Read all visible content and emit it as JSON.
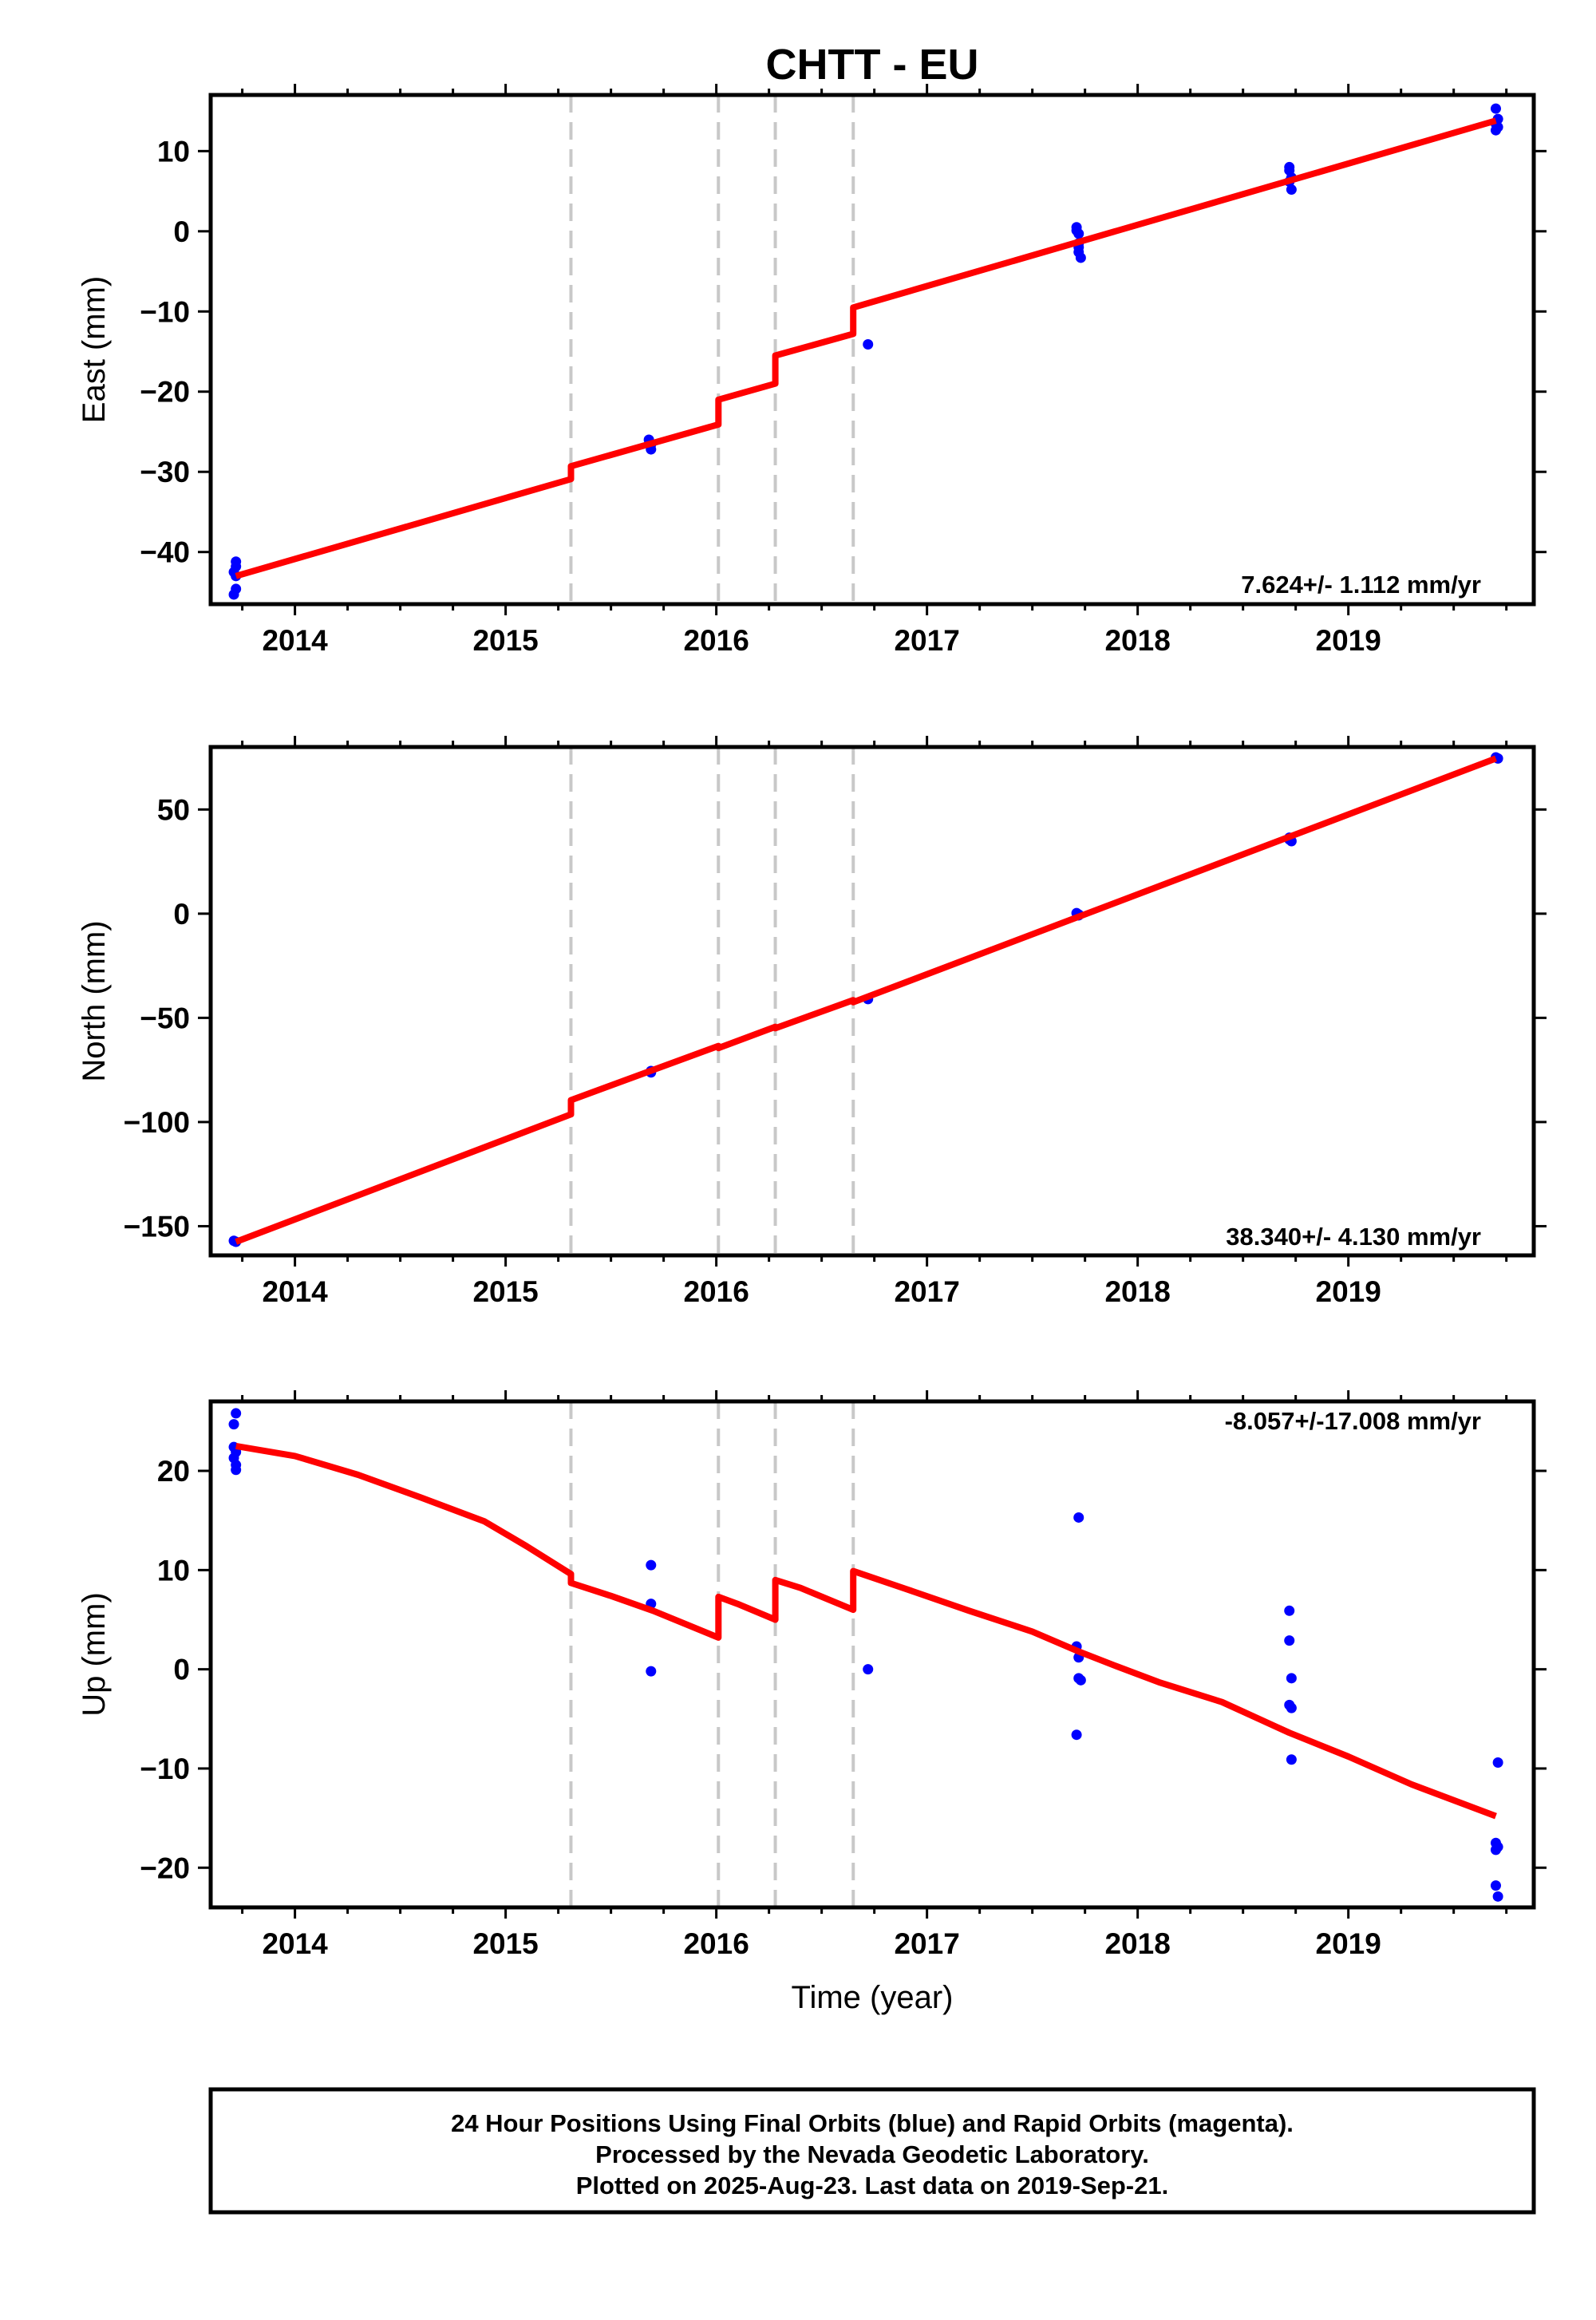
{
  "title": "CHTT - EU",
  "xlabel": "Time (year)",
  "footer": [
    "24 Hour Positions Using Final Orbits (blue) and Rapid Orbits (magenta).",
    "Processed by the Nevada Geodetic Laboratory.",
    "Plotted on 2025-Aug-23. Last data on 2019-Sep-21."
  ],
  "colors": {
    "data": "#0000ff",
    "model": "#ff0000",
    "break": "#c8c8c8",
    "axis": "#000000"
  },
  "chart_data": [
    {
      "type": "scatter",
      "component": "east",
      "ylabel": "East (mm)",
      "xlim": [
        2013.6,
        2019.88
      ],
      "ylim": [
        -46.5,
        17
      ],
      "x_ticks": [
        2014,
        2015,
        2016,
        2017,
        2018,
        2019
      ],
      "y_ticks": [
        -40,
        -30,
        -20,
        -10,
        0,
        10
      ],
      "y_tick_labels": [
        "−40",
        "−30",
        "−20",
        "−10",
        "0",
        "10"
      ],
      "rate_text": "7.624+/- 1.112 mm/yr",
      "breaks": [
        2015.31,
        2016.01,
        2016.28,
        2016.65
      ],
      "points": [
        [
          2013.72,
          -41.2
        ],
        [
          2013.72,
          -41.8
        ],
        [
          2013.71,
          -42.5
        ],
        [
          2013.72,
          -43.0
        ],
        [
          2013.71,
          -45.3
        ],
        [
          2013.72,
          -44.6
        ],
        [
          2015.68,
          -26.0
        ],
        [
          2015.69,
          -26.6
        ],
        [
          2015.69,
          -27.2
        ],
        [
          2016.72,
          -14.1
        ],
        [
          2017.71,
          0.5
        ],
        [
          2017.71,
          0.1
        ],
        [
          2017.72,
          -0.3
        ],
        [
          2017.72,
          -1.5
        ],
        [
          2017.72,
          -2.0
        ],
        [
          2017.72,
          -2.6
        ],
        [
          2017.73,
          -3.3
        ],
        [
          2018.72,
          8.0
        ],
        [
          2018.72,
          7.6
        ],
        [
          2018.73,
          6.7
        ],
        [
          2018.72,
          6.2
        ],
        [
          2018.73,
          5.2
        ],
        [
          2019.7,
          15.3
        ],
        [
          2019.71,
          14.0
        ],
        [
          2019.7,
          13.4
        ],
        [
          2019.71,
          13.0
        ],
        [
          2019.7,
          12.6
        ]
      ],
      "model": [
        [
          2013.72,
          -43.0
        ],
        [
          2015.31,
          -30.9
        ],
        [
          2015.31,
          -29.3
        ],
        [
          2016.01,
          -24.1
        ],
        [
          2016.01,
          -21.0
        ],
        [
          2016.28,
          -19.0
        ],
        [
          2016.28,
          -15.5
        ],
        [
          2016.65,
          -12.8
        ],
        [
          2016.65,
          -9.5
        ],
        [
          2019.7,
          13.8
        ]
      ]
    },
    {
      "type": "scatter",
      "component": "north",
      "ylabel": "North (mm)",
      "xlim": [
        2013.6,
        2019.88
      ],
      "ylim": [
        -164,
        80
      ],
      "x_ticks": [
        2014,
        2015,
        2016,
        2017,
        2018,
        2019
      ],
      "y_ticks": [
        -150,
        -100,
        -50,
        0,
        50
      ],
      "y_tick_labels": [
        "−150",
        "−100",
        "−50",
        "0",
        "50"
      ],
      "rate_text": "38.340+/- 4.130 mm/yr",
      "breaks": [
        2015.31,
        2016.01,
        2016.28,
        2016.65
      ],
      "points": [
        [
          2013.71,
          -157.0
        ],
        [
          2013.72,
          -157.5
        ],
        [
          2015.69,
          -75.5
        ],
        [
          2015.69,
          -76.2
        ],
        [
          2016.72,
          -41.0
        ],
        [
          2017.71,
          0.3
        ],
        [
          2017.72,
          -0.4
        ],
        [
          2017.72,
          -0.8
        ],
        [
          2018.72,
          36.5
        ],
        [
          2018.73,
          34.8
        ],
        [
          2018.72,
          35.6
        ],
        [
          2019.7,
          75.0
        ],
        [
          2019.71,
          74.5
        ]
      ],
      "model": [
        [
          2013.72,
          -157.5
        ],
        [
          2015.31,
          -96.3
        ],
        [
          2015.31,
          -89.5
        ],
        [
          2016.01,
          -63.5
        ],
        [
          2016.01,
          -64.5
        ],
        [
          2016.28,
          -54.3
        ],
        [
          2016.28,
          -55.0
        ],
        [
          2016.65,
          -41.5
        ],
        [
          2016.65,
          -42.5
        ],
        [
          2019.7,
          74.5
        ]
      ]
    },
    {
      "type": "scatter",
      "component": "up",
      "ylabel": "Up (mm)",
      "xlim": [
        2013.6,
        2019.88
      ],
      "ylim": [
        -24,
        27
      ],
      "x_ticks": [
        2014,
        2015,
        2016,
        2017,
        2018,
        2019
      ],
      "y_ticks": [
        -20,
        -10,
        0,
        10,
        20
      ],
      "y_tick_labels": [
        "−20",
        "−10",
        "0",
        "10",
        "20"
      ],
      "rate_text": "-8.057+/-17.008 mm/yr",
      "breaks": [
        2015.31,
        2016.01,
        2016.28,
        2016.65
      ],
      "points": [
        [
          2013.72,
          25.8
        ],
        [
          2013.71,
          24.7
        ],
        [
          2013.71,
          22.4
        ],
        [
          2013.72,
          21.9
        ],
        [
          2013.71,
          21.3
        ],
        [
          2013.72,
          20.6
        ],
        [
          2013.72,
          20.1
        ],
        [
          2015.69,
          10.5
        ],
        [
          2015.69,
          6.6
        ],
        [
          2015.69,
          -0.2
        ],
        [
          2016.72,
          0.0
        ],
        [
          2017.72,
          15.3
        ],
        [
          2017.71,
          2.3
        ],
        [
          2017.72,
          1.2
        ],
        [
          2017.72,
          -0.9
        ],
        [
          2017.73,
          -1.1
        ],
        [
          2017.71,
          -6.6
        ],
        [
          2018.72,
          5.9
        ],
        [
          2018.72,
          2.9
        ],
        [
          2018.73,
          -0.9
        ],
        [
          2018.72,
          -3.6
        ],
        [
          2018.73,
          -3.9
        ],
        [
          2018.73,
          -9.1
        ],
        [
          2019.71,
          -9.4
        ],
        [
          2019.7,
          -17.5
        ],
        [
          2019.71,
          -17.9
        ],
        [
          2019.7,
          -18.2
        ],
        [
          2019.7,
          -21.8
        ],
        [
          2019.71,
          -22.9
        ]
      ],
      "model": [
        [
          2013.72,
          22.5
        ],
        [
          2014.0,
          21.5
        ],
        [
          2014.3,
          19.6
        ],
        [
          2014.6,
          17.3
        ],
        [
          2014.9,
          14.9
        ],
        [
          2015.1,
          12.4
        ],
        [
          2015.31,
          9.6
        ],
        [
          2015.31,
          8.7
        ],
        [
          2015.5,
          7.4
        ],
        [
          2015.7,
          5.9
        ],
        [
          2016.01,
          3.2
        ],
        [
          2016.01,
          7.3
        ],
        [
          2016.1,
          6.6
        ],
        [
          2016.28,
          5.0
        ],
        [
          2016.28,
          9.0
        ],
        [
          2016.4,
          8.2
        ],
        [
          2016.65,
          6.0
        ],
        [
          2016.65,
          9.9
        ],
        [
          2016.9,
          8.1
        ],
        [
          2017.2,
          5.9
        ],
        [
          2017.5,
          3.8
        ],
        [
          2017.72,
          1.8
        ],
        [
          2017.9,
          0.3
        ],
        [
          2018.1,
          -1.3
        ],
        [
          2018.4,
          -3.3
        ],
        [
          2018.72,
          -6.4
        ],
        [
          2019.0,
          -8.8
        ],
        [
          2019.3,
          -11.6
        ],
        [
          2019.7,
          -14.8
        ]
      ]
    }
  ]
}
